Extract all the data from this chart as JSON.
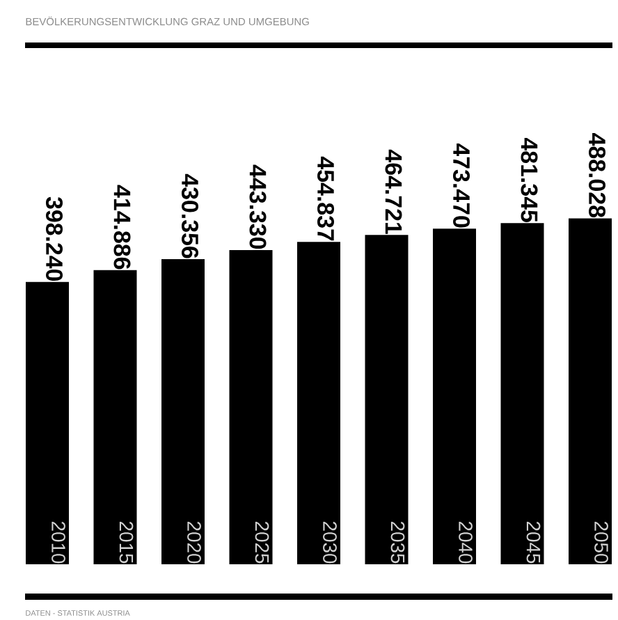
{
  "chart_data": {
    "type": "bar",
    "title": "BEVÖLKERUNGSENTWICKLUNG GRAZ UND UMGEBUNG",
    "categories": [
      "2010",
      "2015",
      "2020",
      "2025",
      "2030",
      "2035",
      "2040",
      "2045",
      "2050"
    ],
    "values": [
      398240,
      414886,
      430356,
      443330,
      454837,
      464721,
      473470,
      481345,
      488028
    ],
    "value_labels": [
      "398.240",
      "414.886",
      "430.356",
      "443.330",
      "454.837",
      "464.721",
      "473.470",
      "481.345",
      "488.028"
    ],
    "color": "#000000",
    "tick_labels": false,
    "annotations": [
      "DATEN - STATISTIK AUSTRIA"
    ]
  }
}
